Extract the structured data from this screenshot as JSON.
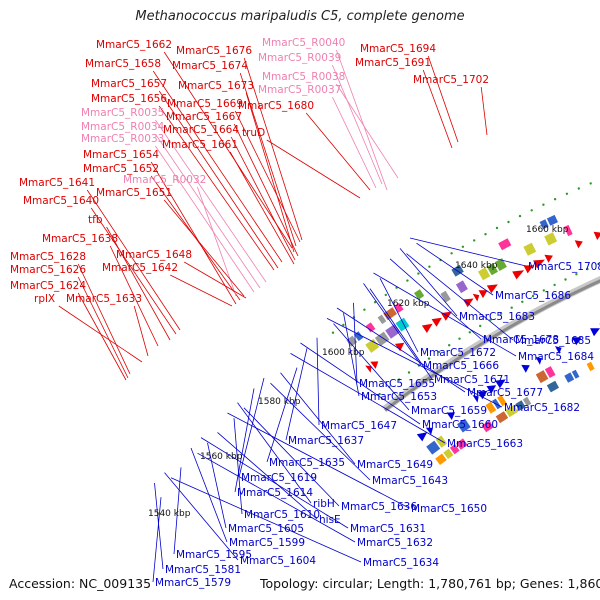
{
  "title": "Methanococcus maripaludis C5, complete genome",
  "footer": {
    "accession": "Accession: NC_009135",
    "summary": "Topology: circular; Length: 1,780,761 bp; Genes: 1,860"
  },
  "colors": {
    "forward_label": "#dd0000",
    "rna_label": "#f080b0",
    "reverse_label": "#0000cc",
    "backbone": "#8a8a8a",
    "tick_dots": "#2a9a2a",
    "cog_palette": [
      "#ff3399",
      "#00cccc",
      "#66aa33",
      "#3366cc",
      "#999999",
      "#ff9900",
      "#9966cc",
      "#cccc33",
      "#336699",
      "#cc6633"
    ]
  },
  "kbp_ticks": [
    "1540 kbp",
    "1560 kbp",
    "1580 kbp",
    "1600 kbp",
    "1620 kbp",
    "1640 kbp",
    "1660 kbp"
  ],
  "labels": [
    {
      "text": "MmarC5_1662",
      "strand": "forward"
    },
    {
      "text": "MmarC5_1676",
      "strand": "forward"
    },
    {
      "text": "MmarC5_R0040",
      "strand": "rna"
    },
    {
      "text": "MmarC5_1694",
      "strand": "forward"
    },
    {
      "text": "MmarC5_1658",
      "strand": "forward"
    },
    {
      "text": "MmarC5_1674",
      "strand": "forward"
    },
    {
      "text": "MmarC5_R0039",
      "strand": "rna"
    },
    {
      "text": "MmarC5_1691",
      "strand": "forward"
    },
    {
      "text": "MmarC5_R0038",
      "strand": "rna"
    },
    {
      "text": "MmarC5_1702",
      "strand": "forward"
    },
    {
      "text": "MmarC5_1657",
      "strand": "forward"
    },
    {
      "text": "MmarC5_1673",
      "strand": "forward"
    },
    {
      "text": "MmarC5_R0037",
      "strand": "rna"
    },
    {
      "text": "MmarC5_1656",
      "strand": "forward"
    },
    {
      "text": "MmarC5_1669",
      "strand": "forward"
    },
    {
      "text": "MmarC5_1680",
      "strand": "forward"
    },
    {
      "text": "MmarC5_R0035",
      "strand": "rna"
    },
    {
      "text": "MmarC5_1667",
      "strand": "forward"
    },
    {
      "text": "MmarC5_R0034",
      "strand": "rna"
    },
    {
      "text": "MmarC5_1664",
      "strand": "forward"
    },
    {
      "text": "truD",
      "strand": "forward"
    },
    {
      "text": "MmarC5_R0033",
      "strand": "rna"
    },
    {
      "text": "MmarC5_1661",
      "strand": "forward"
    },
    {
      "text": "MmarC5_1654",
      "strand": "forward"
    },
    {
      "text": "MmarC5_1652",
      "strand": "forward"
    },
    {
      "text": "MmarC5_R0032",
      "strand": "rna"
    },
    {
      "text": "MmarC5_1641",
      "strand": "forward"
    },
    {
      "text": "MmarC5_1651",
      "strand": "forward"
    },
    {
      "text": "MmarC5_1640",
      "strand": "forward"
    },
    {
      "text": "tfb",
      "strand": "forward"
    },
    {
      "text": "MmarC5_1638",
      "strand": "forward"
    },
    {
      "text": "MmarC5_1628",
      "strand": "forward"
    },
    {
      "text": "MmarC5_1648",
      "strand": "forward"
    },
    {
      "text": "MmarC5_1626",
      "strand": "forward"
    },
    {
      "text": "MmarC5_1642",
      "strand": "forward"
    },
    {
      "text": "MmarC5_1624",
      "strand": "forward"
    },
    {
      "text": "rplX",
      "strand": "forward"
    },
    {
      "text": "MmarC5_1633",
      "strand": "forward"
    },
    {
      "text": "MmarC5_1708",
      "strand": "reverse"
    },
    {
      "text": "MmarC5_1686",
      "strand": "reverse"
    },
    {
      "text": "MmarC5_1683",
      "strand": "reverse"
    },
    {
      "text": "MmarC5_1685",
      "strand": "reverse"
    },
    {
      "text": "MmarC5_1678",
      "strand": "reverse"
    },
    {
      "text": "MmarC5_1684",
      "strand": "reverse"
    },
    {
      "text": "MmarC5_1672",
      "strand": "reverse"
    },
    {
      "text": "MmarC5_1666",
      "strand": "reverse"
    },
    {
      "text": "MmarC5_1671",
      "strand": "reverse"
    },
    {
      "text": "MmarC5_1655",
      "strand": "reverse"
    },
    {
      "text": "MmarC5_1677",
      "strand": "reverse"
    },
    {
      "text": "MmarC5_1653",
      "strand": "reverse"
    },
    {
      "text": "MmarC5_1682",
      "strand": "reverse"
    },
    {
      "text": "MmarC5_1659",
      "strand": "reverse"
    },
    {
      "text": "MmarC5_1647",
      "strand": "reverse"
    },
    {
      "text": "MmarC5_1660",
      "strand": "reverse"
    },
    {
      "text": "MmarC5_1637",
      "strand": "reverse"
    },
    {
      "text": "MmarC5_1663",
      "strand": "reverse"
    },
    {
      "text": "MmarC5_1635",
      "strand": "reverse"
    },
    {
      "text": "MmarC5_1649",
      "strand": "reverse"
    },
    {
      "text": "MmarC5_1619",
      "strand": "reverse"
    },
    {
      "text": "MmarC5_1643",
      "strand": "reverse"
    },
    {
      "text": "MmarC5_1614",
      "strand": "reverse"
    },
    {
      "text": "ribH",
      "strand": "reverse"
    },
    {
      "text": "MmarC5_1636",
      "strand": "reverse"
    },
    {
      "text": "MmarC5_1650",
      "strand": "reverse"
    },
    {
      "text": "MmarC5_1610",
      "strand": "reverse"
    },
    {
      "text": "hisE",
      "strand": "reverse"
    },
    {
      "text": "MmarC5_1631",
      "strand": "reverse"
    },
    {
      "text": "MmarC5_1605",
      "strand": "reverse"
    },
    {
      "text": "MmarC5_1599",
      "strand": "reverse"
    },
    {
      "text": "MmarC5_1632",
      "strand": "reverse"
    },
    {
      "text": "MmarC5_1595",
      "strand": "reverse"
    },
    {
      "text": "MmarC5_1604",
      "strand": "reverse"
    },
    {
      "text": "MmarC5_1634",
      "strand": "reverse"
    },
    {
      "text": "MmarC5_1581",
      "strand": "reverse"
    },
    {
      "text": "MmarC5_1579",
      "strand": "reverse"
    }
  ]
}
